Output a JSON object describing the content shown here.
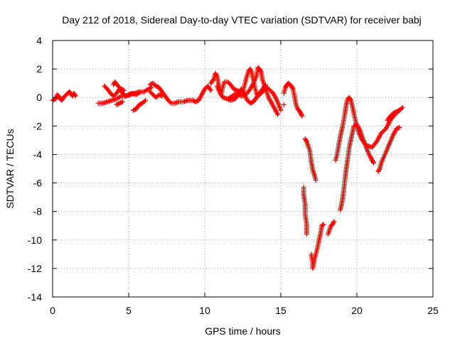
{
  "chart_data": {
    "type": "scatter",
    "title": "Day 212 of 2018, Sidereal Day-to-day VTEC variation (SDTVAR) for receiver babj",
    "xlabel": "GPS time / hours",
    "ylabel": "SDTVAR / TECUs",
    "xlim": [
      0,
      25
    ],
    "ylim": [
      -14,
      4
    ],
    "xticks": [
      0,
      5,
      10,
      15,
      20,
      25
    ],
    "yticks": [
      -14,
      -12,
      -10,
      -8,
      -6,
      -4,
      -2,
      0,
      2,
      4
    ],
    "grid": true,
    "marker": "+",
    "color": "#ff0000",
    "series": [
      {
        "name": "SDTVAR",
        "segments": [
          [
            [
              0.0,
              -0.2
            ],
            [
              0.2,
              -0.1
            ],
            [
              0.3,
              0.2
            ],
            [
              0.4,
              0.1
            ],
            [
              0.5,
              -0.1
            ],
            [
              0.6,
              -0.2
            ],
            [
              0.8,
              0.1
            ],
            [
              1.0,
              0.3
            ],
            [
              1.1,
              0.4
            ],
            [
              1.2,
              0.3
            ],
            [
              1.3,
              0.1
            ],
            [
              1.4,
              0.3
            ],
            [
              1.5,
              0.1
            ]
          ],
          [
            [
              3.0,
              -0.4
            ],
            [
              3.3,
              -0.4
            ],
            [
              3.6,
              -0.3
            ],
            [
              3.9,
              -0.2
            ],
            [
              4.2,
              -0.1
            ],
            [
              4.5,
              0.1
            ],
            [
              4.8,
              0.1
            ],
            [
              5.1,
              0.2
            ],
            [
              5.4,
              0.3
            ],
            [
              5.7,
              0.4
            ],
            [
              6.0,
              0.4
            ],
            [
              6.3,
              0.6
            ],
            [
              6.5,
              0.7
            ]
          ],
          [
            [
              3.4,
              0.8
            ],
            [
              3.6,
              0.6
            ],
            [
              3.8,
              0.3
            ],
            [
              4.0,
              0.1
            ],
            [
              4.2,
              0.3
            ],
            [
              4.4,
              0.6
            ],
            [
              4.6,
              0.3
            ],
            [
              4.8,
              0.1
            ],
            [
              5.0,
              0.2
            ],
            [
              5.2,
              0.3
            ],
            [
              5.5,
              0.2
            ],
            [
              5.8,
              0.4
            ]
          ],
          [
            [
              4.0,
              0.9
            ],
            [
              4.1,
              1.1
            ],
            [
              4.3,
              0.8
            ],
            [
              4.5,
              0.6
            ],
            [
              4.7,
              0.5
            ]
          ],
          [
            [
              4.2,
              -0.5
            ],
            [
              4.4,
              -0.4
            ],
            [
              4.6,
              -0.3
            ]
          ],
          [
            [
              5.3,
              -0.9
            ],
            [
              5.5,
              -0.8
            ],
            [
              5.7,
              -0.5
            ],
            [
              5.9,
              -0.4
            ],
            [
              6.1,
              -0.2
            ]
          ],
          [
            [
              6.4,
              0.9
            ],
            [
              6.6,
              1.0
            ],
            [
              6.8,
              0.8
            ],
            [
              7.0,
              0.7
            ],
            [
              7.2,
              0.4
            ],
            [
              7.4,
              0.1
            ],
            [
              7.6,
              -0.2
            ],
            [
              7.8,
              -0.4
            ],
            [
              8.0,
              -0.4
            ],
            [
              8.3,
              -0.3
            ],
            [
              8.6,
              -0.3
            ],
            [
              8.9,
              -0.2
            ],
            [
              9.2,
              -0.2
            ],
            [
              9.4,
              -0.3
            ],
            [
              9.6,
              -0.2
            ],
            [
              9.8,
              0.2
            ],
            [
              10.0,
              0.6
            ],
            [
              10.2,
              0.8
            ],
            [
              10.4,
              0.5
            ]
          ],
          [
            [
              6.4,
              0.4
            ],
            [
              6.6,
              0.2
            ],
            [
              6.8,
              0.0
            ],
            [
              7.0,
              0.2
            ],
            [
              7.2,
              0.1
            ]
          ],
          [
            [
              10.4,
              1.0
            ],
            [
              10.6,
              1.3
            ],
            [
              10.7,
              1.7
            ],
            [
              10.8,
              1.5
            ],
            [
              10.9,
              1.0
            ],
            [
              11.0,
              0.6
            ],
            [
              11.1,
              0.3
            ],
            [
              11.2,
              0.8
            ],
            [
              11.3,
              1.1
            ],
            [
              11.5,
              1.1
            ],
            [
              11.7,
              0.9
            ],
            [
              11.9,
              0.6
            ],
            [
              12.1,
              0.5
            ],
            [
              12.3,
              0.4
            ],
            [
              12.5,
              0.4
            ],
            [
              12.6,
              0.8
            ],
            [
              12.7,
              1.2
            ],
            [
              12.8,
              1.6
            ],
            [
              12.9,
              1.9
            ],
            [
              13.0,
              2.0
            ],
            [
              13.1,
              1.7
            ],
            [
              13.2,
              1.2
            ],
            [
              13.3,
              0.7
            ],
            [
              13.4,
              0.3
            ],
            [
              13.5,
              0.1
            ],
            [
              13.7,
              0.3
            ],
            [
              13.9,
              0.5
            ],
            [
              14.1,
              0.7
            ],
            [
              14.3,
              0.5
            ],
            [
              14.5,
              0.3
            ],
            [
              14.7,
              -0.1
            ],
            [
              14.9,
              -0.6
            ],
            [
              15.0,
              -0.9
            ]
          ],
          [
            [
              10.8,
              0.8
            ],
            [
              11.0,
              0.3
            ],
            [
              11.2,
              0.0
            ],
            [
              11.5,
              -0.1
            ],
            [
              11.8,
              0.1
            ],
            [
              12.1,
              0.3
            ],
            [
              12.4,
              0.1
            ],
            [
              12.7,
              0.2
            ],
            [
              13.0,
              0.6
            ],
            [
              13.2,
              1.0
            ],
            [
              13.4,
              1.5
            ],
            [
              13.5,
              2.1
            ],
            [
              13.6,
              2.0
            ],
            [
              13.7,
              1.8
            ],
            [
              13.8,
              1.2
            ],
            [
              14.0,
              0.6
            ],
            [
              14.2,
              0.0
            ],
            [
              14.4,
              -0.4
            ],
            [
              14.6,
              -0.8
            ],
            [
              14.8,
              -1.2
            ]
          ],
          [
            [
              11.5,
              -0.1
            ],
            [
              11.7,
              -0.2
            ],
            [
              12.0,
              -0.1
            ],
            [
              12.2,
              0.2
            ],
            [
              12.4,
              0.6
            ],
            [
              12.6,
              0.2
            ],
            [
              12.8,
              -0.2
            ],
            [
              13.0,
              -0.4
            ],
            [
              13.2,
              -0.3
            ],
            [
              13.4,
              0.0
            ],
            [
              13.6,
              0.3
            ],
            [
              13.8,
              0.6
            ],
            [
              14.0,
              0.9
            ]
          ],
          [
            [
              15.2,
              0.3
            ],
            [
              15.3,
              0.7
            ],
            [
              15.4,
              0.9
            ],
            [
              15.5,
              1.0
            ],
            [
              15.6,
              0.9
            ],
            [
              15.7,
              0.8
            ],
            [
              15.8,
              0.6
            ],
            [
              15.9,
              0.1
            ],
            [
              16.0,
              -0.5
            ],
            [
              16.1,
              -0.8
            ],
            [
              16.2,
              -0.9
            ],
            [
              16.3,
              -1.1
            ],
            [
              16.4,
              -1.3
            ]
          ],
          [
            [
              15.2,
              -0.5
            ]
          ],
          [
            [
              16.6,
              -2.9
            ],
            [
              16.7,
              -3.1
            ],
            [
              16.8,
              -3.4
            ],
            [
              16.9,
              -3.7
            ],
            [
              17.0,
              -4.5
            ],
            [
              17.1,
              -5.1
            ],
            [
              17.2,
              -5.4
            ],
            [
              17.3,
              -5.8
            ]
          ],
          [
            [
              16.5,
              -6.3
            ],
            [
              16.5,
              -6.8
            ],
            [
              16.6,
              -7.5
            ],
            [
              16.6,
              -8.2
            ],
            [
              16.7,
              -8.9
            ],
            [
              16.7,
              -9.6
            ]
          ],
          [
            [
              17.0,
              -11.0
            ],
            [
              17.1,
              -11.6
            ],
            [
              17.1,
              -12.0
            ],
            [
              17.2,
              -11.4
            ],
            [
              17.3,
              -11.0
            ],
            [
              17.4,
              -10.6
            ],
            [
              17.5,
              -10.1
            ],
            [
              17.6,
              -9.6
            ],
            [
              17.7,
              -9.0
            ],
            [
              17.8,
              -8.9
            ]
          ],
          [
            [
              18.1,
              -9.6
            ],
            [
              18.2,
              -9.3
            ],
            [
              18.3,
              -9.0
            ],
            [
              18.4,
              -8.9
            ],
            [
              18.5,
              -8.7
            ]
          ],
          [
            [
              18.6,
              -4.4
            ],
            [
              18.7,
              -4.0
            ],
            [
              18.8,
              -3.4
            ],
            [
              18.9,
              -2.8
            ],
            [
              19.0,
              -2.3
            ],
            [
              19.1,
              -1.8
            ],
            [
              19.2,
              -1.2
            ],
            [
              19.3,
              -0.5
            ],
            [
              19.4,
              -0.1
            ],
            [
              19.5,
              0.0
            ],
            [
              19.6,
              -0.2
            ],
            [
              19.7,
              -0.6
            ],
            [
              19.8,
              -1.1
            ],
            [
              19.9,
              -1.6
            ],
            [
              20.0,
              -2.0
            ],
            [
              20.1,
              -2.4
            ],
            [
              20.3,
              -2.9
            ],
            [
              20.5,
              -3.2
            ],
            [
              20.7,
              -3.4
            ],
            [
              21.0,
              -3.5
            ],
            [
              21.3,
              -3.1
            ],
            [
              21.6,
              -2.5
            ],
            [
              21.9,
              -2.2
            ],
            [
              22.2,
              -1.6
            ],
            [
              22.5,
              -1.2
            ],
            [
              22.8,
              -0.9
            ],
            [
              23.0,
              -0.7
            ]
          ],
          [
            [
              18.9,
              -7.9
            ],
            [
              19.0,
              -7.5
            ],
            [
              19.1,
              -6.8
            ],
            [
              19.2,
              -5.9
            ],
            [
              19.3,
              -5.0
            ],
            [
              19.4,
              -4.3
            ],
            [
              19.5,
              -3.5
            ],
            [
              19.6,
              -3.0
            ],
            [
              19.7,
              -2.5
            ],
            [
              19.8,
              -2.0
            ],
            [
              20.0,
              -1.9
            ],
            [
              20.2,
              -2.3
            ],
            [
              20.4,
              -2.9
            ],
            [
              20.6,
              -3.5
            ],
            [
              20.8,
              -4.0
            ],
            [
              21.0,
              -4.4
            ],
            [
              21.1,
              -4.6
            ]
          ],
          [
            [
              21.4,
              -5.2
            ],
            [
              21.5,
              -5.0
            ],
            [
              21.6,
              -4.6
            ],
            [
              21.8,
              -4.1
            ],
            [
              22.0,
              -3.6
            ],
            [
              22.2,
              -3.1
            ],
            [
              22.4,
              -2.6
            ],
            [
              22.6,
              -2.2
            ],
            [
              22.8,
              -2.1
            ]
          ],
          [
            [
              22.0,
              -1.6
            ],
            [
              22.2,
              -1.3
            ],
            [
              22.4,
              -1.1
            ],
            [
              22.6,
              -1.0
            ],
            [
              22.8,
              -0.9
            ]
          ]
        ]
      }
    ]
  }
}
